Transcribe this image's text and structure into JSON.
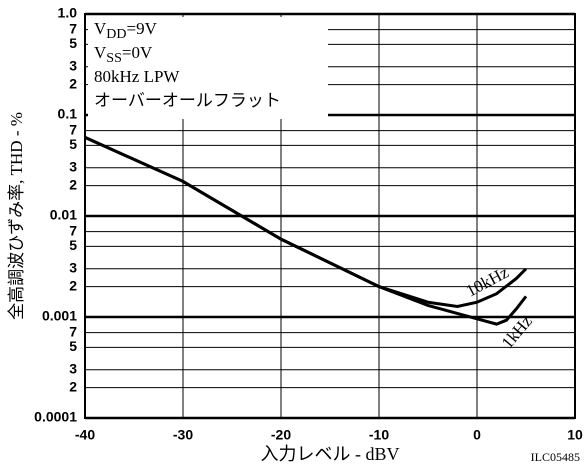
{
  "chart_data": {
    "type": "line",
    "xlabel": "入力レベル - dBV",
    "ylabel": "全高調波ひずみ率, THD - %",
    "code": "ILC05485",
    "conditions": [
      [
        "V",
        "DD",
        "=9V"
      ],
      [
        "V",
        "SS",
        "=0V"
      ],
      [
        "80kHz LPW"
      ],
      [
        "オーバーオールフラット"
      ]
    ],
    "log_y": true,
    "grid": true,
    "xlim": [
      -40,
      10
    ],
    "xticks": [
      -40,
      -30,
      -20,
      -10,
      0,
      10
    ],
    "ylim": [
      0.0001,
      1
    ],
    "yticks": [
      {
        "value": 1,
        "label": "1.0"
      },
      {
        "value": 0.7,
        "label": "7"
      },
      {
        "value": 0.5,
        "label": "5"
      },
      {
        "value": 0.3,
        "label": "3"
      },
      {
        "value": 0.2,
        "label": "2"
      },
      0.1,
      {
        "value": 0.07,
        "label": "7"
      },
      {
        "value": 0.05,
        "label": "5"
      },
      {
        "value": 0.03,
        "label": "3"
      },
      {
        "value": 0.02,
        "label": "2"
      },
      0.01,
      {
        "value": 0.007,
        "label": "7"
      },
      {
        "value": 0.005,
        "label": "5"
      },
      {
        "value": 0.003,
        "label": "3"
      },
      {
        "value": 0.002,
        "label": "2"
      },
      0.001,
      {
        "value": 0.0007,
        "label": "7"
      },
      {
        "value": 0.0005,
        "label": "5"
      },
      {
        "value": 0.0003,
        "label": "3"
      },
      {
        "value": 0.0002,
        "label": "2"
      },
      0.0001
    ],
    "series": [
      {
        "name": "10kHz",
        "color": "#000000",
        "x": [
          -40,
          -30,
          -20,
          -10,
          -5,
          -2,
          0,
          2,
          4,
          5
        ],
        "values": [
          0.06,
          0.022,
          0.0059,
          0.002,
          0.0014,
          0.00127,
          0.0014,
          0.0017,
          0.0024,
          0.003
        ]
      },
      {
        "name": "1kHz",
        "color": "#000000",
        "x": [
          -40,
          -30,
          -20,
          -10,
          -5,
          0,
          2,
          3,
          4,
          5
        ],
        "values": [
          0.06,
          0.022,
          0.0059,
          0.002,
          0.0013,
          0.00096,
          0.00085,
          0.00093,
          0.0012,
          0.0016
        ]
      }
    ]
  }
}
